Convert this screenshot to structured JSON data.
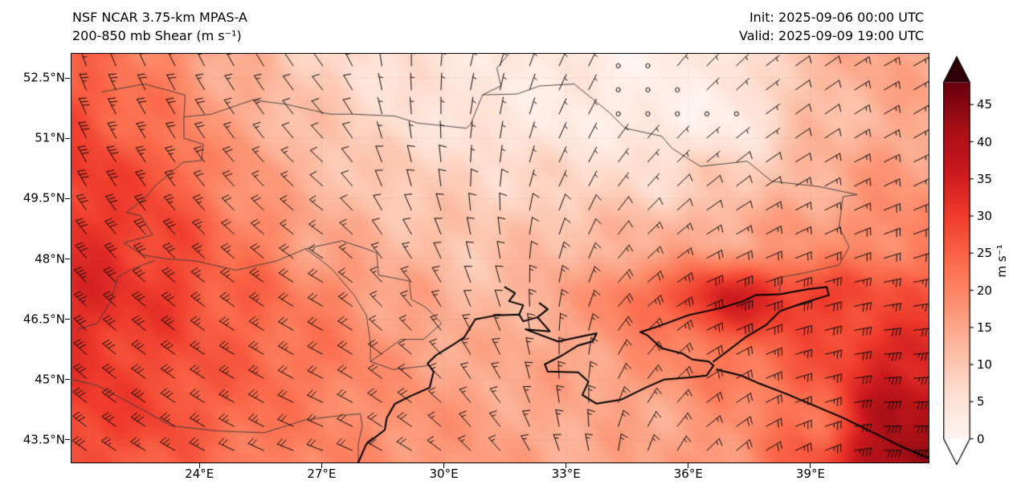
{
  "header": {
    "title_line1": "NSF NCAR 3.75-km MPAS-A",
    "title_line2": "200-850 mb Shear (m s⁻¹)",
    "init_label": "Init: 2025-09-06 00:00 UTC",
    "valid_label": "Valid: 2025-09-09 19:00 UTC"
  },
  "chart_data": {
    "type": "heatmap",
    "title": "200-850 mb Shear (m s⁻¹)",
    "model": "NSF NCAR 3.75-km MPAS-A",
    "overlays": [
      "wind-barbs",
      "coastlines",
      "country-borders",
      "dotted-graticule"
    ],
    "extent": {
      "lon_min": 20.86,
      "lon_max": 41.9,
      "lat_min": 42.94,
      "lat_max": 53.1
    },
    "x_ticks": {
      "values": [
        24,
        27,
        30,
        33,
        36,
        39
      ],
      "labels": [
        "24°E",
        "27°E",
        "30°E",
        "33°E",
        "36°E",
        "39°E"
      ]
    },
    "y_ticks": {
      "values": [
        52.5,
        51,
        49.5,
        48,
        46.5,
        45,
        43.5
      ],
      "labels": [
        "52.5°N",
        "51°N",
        "49.5°N",
        "48°N",
        "46.5°N",
        "45°N",
        "43.5°N"
      ]
    },
    "grid_lons": [
      21,
      23,
      25,
      27,
      29,
      31,
      33,
      35,
      37,
      39,
      41
    ],
    "grid_lats": [
      53,
      51.5,
      50,
      48.5,
      47,
      45.5,
      44,
      43
    ],
    "shear_values": [
      [
        24,
        20,
        13,
        8,
        5,
        4,
        3,
        2,
        4,
        12,
        15
      ],
      [
        28,
        22,
        15,
        10,
        6,
        4,
        3,
        2,
        2,
        11,
        14
      ],
      [
        30,
        27,
        18,
        12,
        9,
        8,
        7,
        7,
        9,
        13,
        17
      ],
      [
        32,
        29,
        22,
        15,
        12,
        10,
        12,
        13,
        15,
        17,
        20
      ],
      [
        33,
        30,
        25,
        20,
        15,
        12,
        15,
        24,
        34,
        30,
        27
      ],
      [
        31,
        28,
        25,
        22,
        17,
        14,
        15,
        18,
        22,
        26,
        34
      ],
      [
        30,
        28,
        24,
        20,
        18,
        16,
        14,
        15,
        18,
        23,
        40
      ],
      [
        28,
        26,
        22,
        20,
        18,
        16,
        15,
        15,
        18,
        26,
        43
      ]
    ],
    "wind_dir_from_deg": [
      [
        340,
        335,
        330,
        325,
        0,
        15,
        25,
        35,
        45,
        55,
        60
      ],
      [
        335,
        330,
        325,
        320,
        355,
        10,
        25,
        40,
        50,
        55,
        60
      ],
      [
        330,
        325,
        318,
        312,
        345,
        5,
        25,
        42,
        52,
        60,
        65
      ],
      [
        322,
        318,
        312,
        306,
        330,
        350,
        20,
        45,
        60,
        65,
        70
      ],
      [
        315,
        310,
        305,
        300,
        320,
        340,
        10,
        50,
        70,
        75,
        80
      ],
      [
        312,
        306,
        300,
        298,
        310,
        330,
        0,
        40,
        62,
        75,
        85
      ],
      [
        308,
        303,
        298,
        294,
        305,
        320,
        350,
        30,
        55,
        70,
        88
      ],
      [
        305,
        300,
        295,
        290,
        300,
        315,
        340,
        20,
        50,
        65,
        90
      ]
    ],
    "colorbar": {
      "label": "m s⁻¹",
      "ticks": [
        0,
        5,
        10,
        15,
        20,
        25,
        30,
        35,
        40,
        45
      ],
      "vmin": 0,
      "vmax": 48,
      "extend": "both",
      "over_color": "#2e0005",
      "under_color": "#ffffff",
      "stops": {
        "positions": [
          0,
          0.125,
          0.25,
          0.375,
          0.5,
          0.625,
          0.75,
          0.875,
          1
        ],
        "colors": [
          "#fff5f0",
          "#fee0d2",
          "#fcbba1",
          "#fc9272",
          "#fb6a4a",
          "#ef3b2c",
          "#cb181d",
          "#a50f15",
          "#67000d"
        ]
      }
    },
    "geography": {
      "coastlines": [
        [
          [
            27.9,
            42.94
          ],
          [
            28.1,
            43.4
          ],
          [
            28.55,
            43.75
          ],
          [
            28.6,
            44.05
          ],
          [
            28.8,
            44.4
          ],
          [
            29.2,
            44.6
          ],
          [
            29.65,
            44.8
          ],
          [
            29.75,
            45.2
          ],
          [
            29.6,
            45.4
          ],
          [
            29.8,
            45.6
          ],
          [
            30.2,
            45.85
          ],
          [
            30.5,
            46.05
          ],
          [
            30.77,
            46.5
          ],
          [
            31.3,
            46.6
          ],
          [
            31.85,
            46.62
          ],
          [
            31.95,
            46.45
          ],
          [
            32.3,
            46.55
          ],
          [
            32.6,
            46.2
          ],
          [
            32.0,
            46.25
          ],
          [
            32.8,
            45.95
          ],
          [
            33.5,
            46.1
          ],
          [
            33.75,
            46.15
          ],
          [
            33.65,
            45.95
          ],
          [
            33.3,
            45.85
          ],
          [
            32.9,
            45.6
          ],
          [
            32.48,
            45.38
          ],
          [
            32.55,
            45.2
          ],
          [
            33.3,
            45.18
          ],
          [
            33.55,
            44.95
          ],
          [
            33.4,
            44.62
          ],
          [
            33.75,
            44.4
          ],
          [
            34.35,
            44.5
          ],
          [
            34.95,
            44.8
          ],
          [
            35.4,
            45.0
          ],
          [
            36.0,
            45.05
          ],
          [
            36.45,
            45.1
          ],
          [
            36.62,
            45.35
          ],
          [
            36.5,
            45.45
          ],
          [
            36.1,
            45.5
          ],
          [
            35.85,
            45.65
          ],
          [
            35.35,
            45.78
          ],
          [
            35.0,
            46.1
          ],
          [
            34.82,
            46.18
          ],
          [
            35.25,
            46.32
          ],
          [
            36.0,
            46.6
          ],
          [
            36.8,
            46.78
          ],
          [
            37.35,
            46.95
          ],
          [
            37.65,
            47.1
          ],
          [
            38.25,
            47.12
          ],
          [
            38.95,
            47.25
          ],
          [
            39.4,
            47.3
          ],
          [
            39.45,
            47.1
          ],
          [
            38.8,
            46.9
          ],
          [
            38.25,
            46.7
          ],
          [
            37.9,
            46.35
          ],
          [
            37.4,
            46.05
          ],
          [
            36.95,
            45.7
          ],
          [
            36.62,
            45.45
          ]
        ],
        [
          [
            36.7,
            45.25
          ],
          [
            37.3,
            45.1
          ],
          [
            37.75,
            44.9
          ],
          [
            38.4,
            44.65
          ],
          [
            39.1,
            44.35
          ],
          [
            39.8,
            44.05
          ],
          [
            40.5,
            43.7
          ],
          [
            41.2,
            43.35
          ],
          [
            41.9,
            43.05
          ]
        ],
        [
          [
            31.85,
            46.62
          ],
          [
            31.95,
            46.85
          ],
          [
            31.6,
            46.95
          ],
          [
            31.75,
            47.15
          ],
          [
            31.5,
            47.3
          ]
        ],
        [
          [
            32.3,
            46.55
          ],
          [
            32.55,
            46.75
          ],
          [
            32.35,
            46.9
          ]
        ]
      ],
      "borders": [
        [
          [
            21.6,
            52.15
          ],
          [
            22.65,
            52.35
          ],
          [
            23.2,
            52.2
          ],
          [
            23.65,
            52.07
          ],
          [
            23.62,
            51.53
          ],
          [
            24.3,
            51.6
          ],
          [
            25.3,
            51.95
          ],
          [
            26.1,
            51.85
          ],
          [
            27.2,
            51.6
          ],
          [
            27.75,
            51.6
          ],
          [
            28.8,
            51.55
          ],
          [
            29.35,
            51.38
          ],
          [
            30.55,
            51.25
          ],
          [
            30.65,
            51.33
          ],
          [
            30.95,
            52.08
          ],
          [
            31.8,
            52.1
          ],
          [
            32.35,
            52.3
          ],
          [
            33.2,
            52.35
          ],
          [
            34.05,
            51.65
          ],
          [
            34.45,
            51.25
          ],
          [
            35.35,
            51.05
          ],
          [
            35.6,
            50.75
          ],
          [
            36.3,
            50.3
          ],
          [
            37.45,
            50.43
          ],
          [
            38.05,
            49.93
          ],
          [
            39.2,
            49.8
          ],
          [
            40.15,
            49.6
          ],
          [
            39.8,
            49.55
          ],
          [
            39.7,
            48.8
          ],
          [
            39.95,
            48.3
          ],
          [
            39.7,
            47.85
          ],
          [
            38.85,
            47.65
          ],
          [
            38.3,
            47.55
          ],
          [
            38.22,
            47.12
          ]
        ],
        [
          [
            23.62,
            51.53
          ],
          [
            23.62,
            51.0
          ],
          [
            24.1,
            50.85
          ],
          [
            24.05,
            50.45
          ],
          [
            23.6,
            50.4
          ],
          [
            22.95,
            49.85
          ],
          [
            22.65,
            49.5
          ],
          [
            22.2,
            49.15
          ],
          [
            22.55,
            49.08
          ],
          [
            22.85,
            48.6
          ],
          [
            22.15,
            48.4
          ],
          [
            22.6,
            48.1
          ],
          [
            23.2,
            48.0
          ],
          [
            23.9,
            47.95
          ],
          [
            24.9,
            47.72
          ],
          [
            25.9,
            47.95
          ],
          [
            26.6,
            48.25
          ],
          [
            27.5,
            48.45
          ],
          [
            28.1,
            48.25
          ],
          [
            28.35,
            48.15
          ],
          [
            28.4,
            47.6
          ],
          [
            29.15,
            47.45
          ],
          [
            29.2,
            47.0
          ],
          [
            29.55,
            46.8
          ],
          [
            29.95,
            46.4
          ],
          [
            29.5,
            46.0
          ],
          [
            28.95,
            46.0
          ],
          [
            28.2,
            45.45
          ],
          [
            28.75,
            45.25
          ],
          [
            29.65,
            45.35
          ]
        ],
        [
          [
            26.6,
            48.25
          ],
          [
            26.95,
            48.0
          ],
          [
            27.25,
            47.75
          ],
          [
            27.8,
            47.1
          ],
          [
            28.1,
            46.6
          ],
          [
            28.2,
            45.9
          ],
          [
            28.2,
            45.45
          ]
        ],
        [
          [
            20.9,
            45.0
          ],
          [
            21.5,
            44.85
          ],
          [
            22.15,
            44.5
          ],
          [
            22.7,
            44.2
          ],
          [
            23.3,
            43.85
          ],
          [
            24.5,
            43.72
          ],
          [
            25.6,
            43.68
          ],
          [
            26.6,
            44.0
          ],
          [
            27.4,
            44.1
          ],
          [
            27.95,
            44.15
          ],
          [
            28.0,
            43.85
          ],
          [
            27.9,
            43.4
          ],
          [
            27.9,
            42.94
          ]
        ],
        [
          [
            30.95,
            52.08
          ],
          [
            31.4,
            52.3
          ],
          [
            31.3,
            52.75
          ],
          [
            31.6,
            53.1
          ]
        ],
        [
          [
            21.0,
            46.25
          ],
          [
            21.5,
            46.4
          ],
          [
            21.85,
            47.0
          ],
          [
            22.0,
            47.55
          ],
          [
            22.35,
            47.75
          ],
          [
            22.9,
            47.96
          ]
        ]
      ]
    }
  }
}
